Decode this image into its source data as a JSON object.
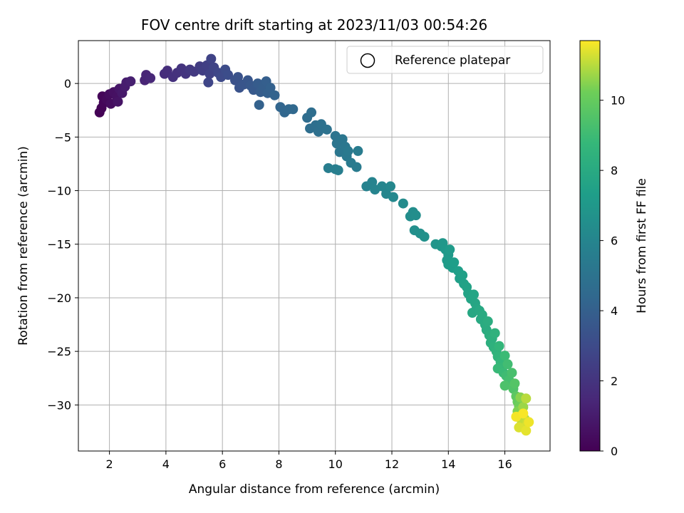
{
  "chart_data": {
    "type": "scatter",
    "title": "FOV centre drift starting at 2023/11/03 00:54:26",
    "xlabel": "Angular distance from reference (arcmin)",
    "ylabel": "Rotation from reference (arcmin)",
    "xlim": [
      0.9,
      17.6
    ],
    "ylim": [
      -34.3,
      4.0
    ],
    "xticks": [
      2,
      4,
      6,
      8,
      10,
      12,
      14,
      16
    ],
    "yticks": [
      0,
      -5,
      -10,
      -15,
      -20,
      -25,
      -30
    ],
    "xtick_labels": [
      "2",
      "4",
      "6",
      "8",
      "10",
      "12",
      "14",
      "16"
    ],
    "ytick_labels": [
      "0",
      "−5",
      "−10",
      "−15",
      "−20",
      "−25",
      "−30"
    ],
    "grid": true,
    "legend": {
      "placement": "top-right",
      "entries": [
        "Reference platepar"
      ]
    },
    "colorbar": {
      "label": "Hours from first FF file",
      "colormap": "viridis",
      "range": [
        0,
        11.7
      ],
      "ticks": [
        0,
        2,
        4,
        6,
        8,
        10
      ],
      "tick_labels": [
        "0",
        "2",
        "4",
        "6",
        "8",
        "10"
      ]
    },
    "series": [
      {
        "color_by": "hours",
        "points": [
          {
            "x": 1.65,
            "y": -2.7,
            "c": 0.05
          },
          {
            "x": 1.72,
            "y": -2.3,
            "c": 0.1
          },
          {
            "x": 1.8,
            "y": -1.8,
            "c": 0.15
          },
          {
            "x": 1.75,
            "y": -1.2,
            "c": 0.2
          },
          {
            "x": 1.9,
            "y": -1.5,
            "c": 0.3
          },
          {
            "x": 2.0,
            "y": -1.0,
            "c": 0.4
          },
          {
            "x": 2.05,
            "y": -1.9,
            "c": 0.45
          },
          {
            "x": 2.15,
            "y": -0.8,
            "c": 0.55
          },
          {
            "x": 2.25,
            "y": -1.2,
            "c": 0.6
          },
          {
            "x": 2.3,
            "y": -1.7,
            "c": 0.7
          },
          {
            "x": 2.35,
            "y": -0.5,
            "c": 0.8
          },
          {
            "x": 2.45,
            "y": -0.9,
            "c": 0.9
          },
          {
            "x": 2.55,
            "y": -0.3,
            "c": 1.0
          },
          {
            "x": 2.6,
            "y": 0.1,
            "c": 1.05
          },
          {
            "x": 2.75,
            "y": 0.2,
            "c": 1.15
          },
          {
            "x": 3.25,
            "y": 0.3,
            "c": 1.35
          },
          {
            "x": 3.3,
            "y": 0.8,
            "c": 1.4
          },
          {
            "x": 3.45,
            "y": 0.5,
            "c": 1.45
          },
          {
            "x": 3.95,
            "y": 0.9,
            "c": 1.7
          },
          {
            "x": 4.05,
            "y": 1.2,
            "c": 1.75
          },
          {
            "x": 4.25,
            "y": 0.6,
            "c": 1.85
          },
          {
            "x": 4.4,
            "y": 1.0,
            "c": 1.9
          },
          {
            "x": 4.55,
            "y": 1.4,
            "c": 2.0
          },
          {
            "x": 4.7,
            "y": 0.9,
            "c": 2.05
          },
          {
            "x": 4.85,
            "y": 1.3,
            "c": 2.15
          },
          {
            "x": 5.0,
            "y": 1.1,
            "c": 2.25
          },
          {
            "x": 5.2,
            "y": 1.6,
            "c": 2.35
          },
          {
            "x": 5.3,
            "y": 1.2,
            "c": 2.45
          },
          {
            "x": 5.45,
            "y": 1.7,
            "c": 2.5
          },
          {
            "x": 5.55,
            "y": 0.9,
            "c": 2.6
          },
          {
            "x": 5.6,
            "y": 2.3,
            "c": 2.65
          },
          {
            "x": 5.7,
            "y": 1.5,
            "c": 2.7
          },
          {
            "x": 5.5,
            "y": 0.1,
            "c": 2.75
          },
          {
            "x": 5.85,
            "y": 1.0,
            "c": 2.85
          },
          {
            "x": 5.95,
            "y": 0.6,
            "c": 2.95
          },
          {
            "x": 6.1,
            "y": 1.3,
            "c": 3.05
          },
          {
            "x": 6.2,
            "y": 0.8,
            "c": 3.1
          },
          {
            "x": 6.45,
            "y": 0.3,
            "c": 3.3
          },
          {
            "x": 6.55,
            "y": 0.6,
            "c": 3.35
          },
          {
            "x": 6.6,
            "y": -0.4,
            "c": 3.4
          },
          {
            "x": 6.75,
            "y": -0.1,
            "c": 3.5
          },
          {
            "x": 6.9,
            "y": 0.3,
            "c": 3.55
          },
          {
            "x": 7.0,
            "y": -0.2,
            "c": 3.65
          },
          {
            "x": 7.1,
            "y": -0.6,
            "c": 3.7
          },
          {
            "x": 7.25,
            "y": 0.0,
            "c": 3.8
          },
          {
            "x": 7.35,
            "y": -0.8,
            "c": 3.85
          },
          {
            "x": 7.45,
            "y": -0.3,
            "c": 3.9
          },
          {
            "x": 7.55,
            "y": 0.2,
            "c": 3.95
          },
          {
            "x": 7.6,
            "y": -0.9,
            "c": 4.0
          },
          {
            "x": 7.7,
            "y": -0.4,
            "c": 4.05
          },
          {
            "x": 7.3,
            "y": -2.0,
            "c": 4.1
          },
          {
            "x": 7.85,
            "y": -1.1,
            "c": 4.15
          },
          {
            "x": 8.05,
            "y": -2.2,
            "c": 4.3
          },
          {
            "x": 8.2,
            "y": -2.7,
            "c": 4.35
          },
          {
            "x": 8.35,
            "y": -2.4,
            "c": 4.4
          },
          {
            "x": 8.5,
            "y": -2.4,
            "c": 4.45
          },
          {
            "x": 9.0,
            "y": -3.2,
            "c": 4.65
          },
          {
            "x": 9.15,
            "y": -2.7,
            "c": 4.7
          },
          {
            "x": 9.1,
            "y": -4.2,
            "c": 4.75
          },
          {
            "x": 9.3,
            "y": -3.9,
            "c": 4.8
          },
          {
            "x": 9.4,
            "y": -4.5,
            "c": 4.85
          },
          {
            "x": 9.5,
            "y": -3.8,
            "c": 4.9
          },
          {
            "x": 9.7,
            "y": -4.3,
            "c": 4.95
          },
          {
            "x": 10.0,
            "y": -4.9,
            "c": 5.05
          },
          {
            "x": 10.05,
            "y": -5.6,
            "c": 5.1
          },
          {
            "x": 10.15,
            "y": -6.4,
            "c": 5.15
          },
          {
            "x": 10.25,
            "y": -5.2,
            "c": 5.2
          },
          {
            "x": 10.35,
            "y": -5.9,
            "c": 5.25
          },
          {
            "x": 10.4,
            "y": -6.8,
            "c": 5.3
          },
          {
            "x": 10.45,
            "y": -6.3,
            "c": 5.35
          },
          {
            "x": 10.55,
            "y": -7.4,
            "c": 5.4
          },
          {
            "x": 10.75,
            "y": -7.8,
            "c": 5.45
          },
          {
            "x": 10.8,
            "y": -6.3,
            "c": 5.5
          },
          {
            "x": 9.75,
            "y": -7.9,
            "c": 5.55
          },
          {
            "x": 10.0,
            "y": -8.0,
            "c": 5.6
          },
          {
            "x": 10.1,
            "y": -8.1,
            "c": 5.65
          },
          {
            "x": 11.1,
            "y": -9.6,
            "c": 5.85
          },
          {
            "x": 11.3,
            "y": -9.2,
            "c": 5.9
          },
          {
            "x": 11.4,
            "y": -9.9,
            "c": 5.95
          },
          {
            "x": 11.65,
            "y": -9.6,
            "c": 6.0
          },
          {
            "x": 11.8,
            "y": -10.3,
            "c": 6.05
          },
          {
            "x": 11.95,
            "y": -9.6,
            "c": 6.1
          },
          {
            "x": 12.05,
            "y": -10.6,
            "c": 6.15
          },
          {
            "x": 12.4,
            "y": -11.2,
            "c": 6.3
          },
          {
            "x": 12.65,
            "y": -12.4,
            "c": 6.4
          },
          {
            "x": 12.75,
            "y": -12.0,
            "c": 6.45
          },
          {
            "x": 12.85,
            "y": -12.3,
            "c": 6.5
          },
          {
            "x": 12.8,
            "y": -13.7,
            "c": 6.55
          },
          {
            "x": 13.0,
            "y": -14.0,
            "c": 6.6
          },
          {
            "x": 13.15,
            "y": -14.3,
            "c": 6.65
          },
          {
            "x": 13.55,
            "y": -15.0,
            "c": 6.85
          },
          {
            "x": 13.75,
            "y": -15.2,
            "c": 6.9
          },
          {
            "x": 13.8,
            "y": -14.9,
            "c": 6.95
          },
          {
            "x": 13.9,
            "y": -15.5,
            "c": 7.0
          },
          {
            "x": 14.0,
            "y": -16.0,
            "c": 7.05
          },
          {
            "x": 13.95,
            "y": -16.5,
            "c": 7.1
          },
          {
            "x": 14.05,
            "y": -15.5,
            "c": 7.15
          },
          {
            "x": 14.0,
            "y": -16.9,
            "c": 7.2
          },
          {
            "x": 14.15,
            "y": -17.2,
            "c": 7.25
          },
          {
            "x": 14.2,
            "y": -16.7,
            "c": 7.3
          },
          {
            "x": 14.35,
            "y": -17.5,
            "c": 7.35
          },
          {
            "x": 14.4,
            "y": -18.2,
            "c": 7.4
          },
          {
            "x": 14.5,
            "y": -17.9,
            "c": 7.45
          },
          {
            "x": 14.55,
            "y": -18.7,
            "c": 7.5
          },
          {
            "x": 14.65,
            "y": -19.0,
            "c": 7.55
          },
          {
            "x": 14.7,
            "y": -19.6,
            "c": 7.6
          },
          {
            "x": 14.8,
            "y": -20.1,
            "c": 7.65
          },
          {
            "x": 14.9,
            "y": -19.7,
            "c": 7.7
          },
          {
            "x": 14.95,
            "y": -20.5,
            "c": 7.75
          },
          {
            "x": 15.0,
            "y": -21.0,
            "c": 7.8
          },
          {
            "x": 14.85,
            "y": -21.4,
            "c": 7.85
          },
          {
            "x": 15.1,
            "y": -21.2,
            "c": 7.9
          },
          {
            "x": 15.15,
            "y": -22.0,
            "c": 7.95
          },
          {
            "x": 15.2,
            "y": -21.6,
            "c": 8.0
          },
          {
            "x": 15.3,
            "y": -22.5,
            "c": 8.05
          },
          {
            "x": 15.35,
            "y": -23.0,
            "c": 8.1
          },
          {
            "x": 15.4,
            "y": -22.2,
            "c": 8.15
          },
          {
            "x": 15.45,
            "y": -23.5,
            "c": 8.2
          },
          {
            "x": 15.5,
            "y": -24.2,
            "c": 8.25
          },
          {
            "x": 15.55,
            "y": -23.8,
            "c": 8.3
          },
          {
            "x": 15.6,
            "y": -24.6,
            "c": 8.4
          },
          {
            "x": 15.65,
            "y": -23.3,
            "c": 8.45
          },
          {
            "x": 15.7,
            "y": -25.0,
            "c": 8.5
          },
          {
            "x": 15.75,
            "y": -25.5,
            "c": 8.6
          },
          {
            "x": 15.8,
            "y": -24.5,
            "c": 8.65
          },
          {
            "x": 15.85,
            "y": -26.0,
            "c": 8.7
          },
          {
            "x": 15.9,
            "y": -26.5,
            "c": 8.8
          },
          {
            "x": 15.75,
            "y": -26.6,
            "c": 8.85
          },
          {
            "x": 15.95,
            "y": -27.0,
            "c": 8.9
          },
          {
            "x": 16.0,
            "y": -25.4,
            "c": 8.95
          },
          {
            "x": 16.05,
            "y": -27.3,
            "c": 9.05
          },
          {
            "x": 16.1,
            "y": -26.2,
            "c": 9.1
          },
          {
            "x": 16.15,
            "y": -27.7,
            "c": 9.2
          },
          {
            "x": 16.25,
            "y": -27.0,
            "c": 9.3
          },
          {
            "x": 16.0,
            "y": -28.2,
            "c": 9.4
          },
          {
            "x": 16.3,
            "y": -28.5,
            "c": 9.5
          },
          {
            "x": 16.35,
            "y": -28.0,
            "c": 9.6
          },
          {
            "x": 16.4,
            "y": -29.2,
            "c": 9.8
          },
          {
            "x": 16.45,
            "y": -29.7,
            "c": 10.0
          },
          {
            "x": 16.5,
            "y": -30.1,
            "c": 10.2
          },
          {
            "x": 16.45,
            "y": -30.6,
            "c": 10.4
          },
          {
            "x": 16.55,
            "y": -29.3,
            "c": 10.5
          },
          {
            "x": 16.6,
            "y": -30.9,
            "c": 10.6
          },
          {
            "x": 16.65,
            "y": -30.2,
            "c": 10.7
          },
          {
            "x": 16.5,
            "y": -31.1,
            "c": 10.8
          },
          {
            "x": 16.7,
            "y": -31.3,
            "c": 10.9
          },
          {
            "x": 16.75,
            "y": -29.4,
            "c": 11.0
          },
          {
            "x": 16.6,
            "y": -31.7,
            "c": 11.1
          },
          {
            "x": 16.8,
            "y": -31.6,
            "c": 11.2
          },
          {
            "x": 16.7,
            "y": -32.1,
            "c": 11.3
          },
          {
            "x": 16.5,
            "y": -32.1,
            "c": 11.35
          },
          {
            "x": 16.75,
            "y": -32.4,
            "c": 11.45
          },
          {
            "x": 16.85,
            "y": -31.6,
            "c": 11.55
          },
          {
            "x": 16.4,
            "y": -31.1,
            "c": 11.6
          },
          {
            "x": 16.65,
            "y": -30.8,
            "c": 11.65
          }
        ]
      }
    ]
  }
}
